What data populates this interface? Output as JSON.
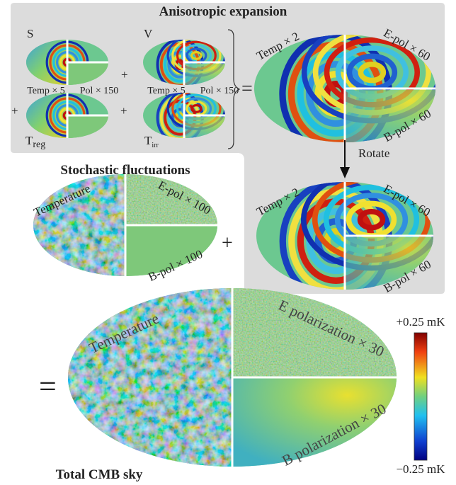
{
  "top_panel": {
    "title": "Anisotropic expansion",
    "s_label": "S",
    "v_label": "V",
    "plus_1": "+",
    "plus_2": "+",
    "plus_3": "+",
    "equals": "=",
    "s_temp": "Temp × 5",
    "s_pol": "Pol × 150",
    "v_temp": "Temp × 5",
    "v_pol": "Pol × 150",
    "t_reg": {
      "main": "T",
      "sub": "reg"
    },
    "t_irr": {
      "main": "T",
      "sub": "irr"
    },
    "sum_temp": "Temp × 2",
    "sum_e": "E-pol × 60",
    "sum_b": "B-pol × 60",
    "rotate": "Rotate",
    "rot_temp": "Temp × 2",
    "rot_e": "E-pol × 60",
    "rot_b": "B-pol × 60"
  },
  "stochastic": {
    "title": "Stochastic fluctuations",
    "temp": "Temperature",
    "e": "E-pol × 100",
    "b": "B-pol × 100",
    "plus": "+"
  },
  "total": {
    "equals": "=",
    "temp": "Temperature",
    "e": "E polarization × 30",
    "b": "B polarization × 30",
    "title": "Total CMB sky"
  },
  "colorbar": {
    "max": "+0.25 mK",
    "min": "−0.25 mK"
  }
}
